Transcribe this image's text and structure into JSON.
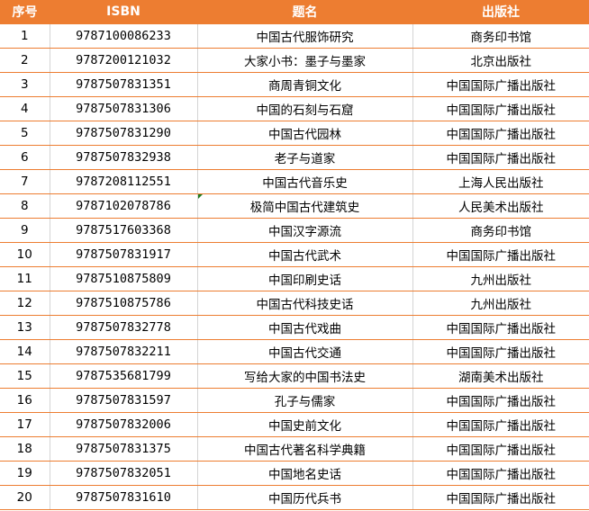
{
  "header": {
    "no": "序号",
    "isbn": "ISBN",
    "title": "题名",
    "publisher": "出版社"
  },
  "colors": {
    "header_bg": "#ed7d31",
    "row_border": "#ed7d31",
    "comment_marker": "#1e7b1e"
  },
  "rows": [
    {
      "no": "1",
      "isbn": "9787100086233",
      "title": "中国古代服饰研究",
      "publisher": "商务印书馆"
    },
    {
      "no": "2",
      "isbn": "9787200121032",
      "title": "大家小书：墨子与墨家",
      "publisher": "北京出版社"
    },
    {
      "no": "3",
      "isbn": "9787507831351",
      "title": "商周青铜文化",
      "publisher": "中国国际广播出版社"
    },
    {
      "no": "4",
      "isbn": "9787507831306",
      "title": "中国的石刻与石窟",
      "publisher": "中国国际广播出版社"
    },
    {
      "no": "5",
      "isbn": "9787507831290",
      "title": "中国古代园林",
      "publisher": "中国国际广播出版社"
    },
    {
      "no": "6",
      "isbn": "9787507832938",
      "title": "老子与道家",
      "publisher": "中国国际广播出版社"
    },
    {
      "no": "7",
      "isbn": "9787208112551",
      "title": "中国古代音乐史",
      "publisher": "上海人民出版社"
    },
    {
      "no": "8",
      "isbn": "9787102078786",
      "title": "极简中国古代建筑史",
      "publisher": "人民美术出版社"
    },
    {
      "no": "9",
      "isbn": "9787517603368",
      "title": "中国汉字源流",
      "publisher": "商务印书馆"
    },
    {
      "no": "10",
      "isbn": "9787507831917",
      "title": "中国古代武术",
      "publisher": "中国国际广播出版社"
    },
    {
      "no": "11",
      "isbn": "9787510875809",
      "title": "中国印刷史话",
      "publisher": "九州出版社"
    },
    {
      "no": "12",
      "isbn": "9787510875786",
      "title": "中国古代科技史话",
      "publisher": "九州出版社"
    },
    {
      "no": "13",
      "isbn": "9787507832778",
      "title": "中国古代戏曲",
      "publisher": "中国国际广播出版社"
    },
    {
      "no": "14",
      "isbn": "9787507832211",
      "title": "中国古代交通",
      "publisher": "中国国际广播出版社"
    },
    {
      "no": "15",
      "isbn": "9787535681799",
      "title": "写给大家的中国书法史",
      "publisher": "湖南美术出版社"
    },
    {
      "no": "16",
      "isbn": "9787507831597",
      "title": "孔子与儒家",
      "publisher": "中国国际广播出版社"
    },
    {
      "no": "17",
      "isbn": "9787507832006",
      "title": "中国史前文化",
      "publisher": "中国国际广播出版社"
    },
    {
      "no": "18",
      "isbn": "9787507831375",
      "title": "中国古代著名科学典籍",
      "publisher": "中国国际广播出版社"
    },
    {
      "no": "19",
      "isbn": "9787507832051",
      "title": "中国地名史话",
      "publisher": "中国国际广播出版社"
    },
    {
      "no": "20",
      "isbn": "9787507831610",
      "title": "中国历代兵书",
      "publisher": "中国国际广播出版社"
    }
  ]
}
